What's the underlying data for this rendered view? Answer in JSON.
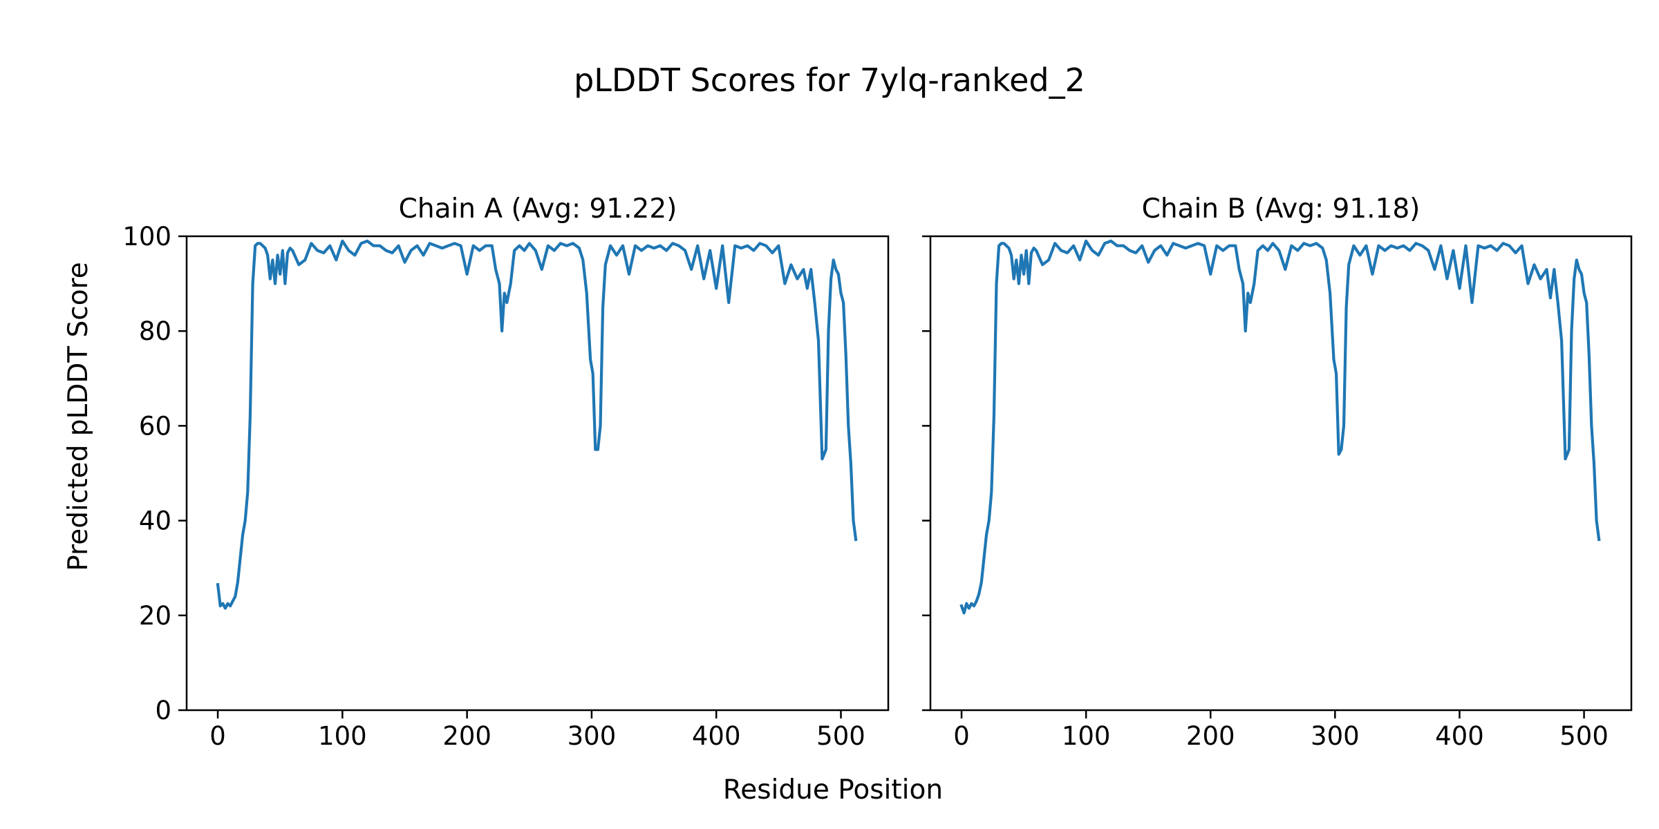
{
  "figure": {
    "title": "pLDDT Scores for 7ylq-ranked_2",
    "xlabel": "Residue Position",
    "ylabel": "Predicted pLDDT Score"
  },
  "chart_data": [
    {
      "type": "line",
      "title": "Chain A (Avg: 91.22)",
      "xlabel": "Residue Position",
      "ylabel": "Predicted pLDDT Score",
      "xlim": [
        -25,
        538
      ],
      "ylim": [
        0,
        100
      ],
      "xticks": [
        "0",
        "100",
        "200",
        "300",
        "400",
        "500"
      ],
      "yticks": [
        "0",
        "20",
        "40",
        "60",
        "80",
        "100"
      ],
      "grid": false,
      "color": "#1f77b4",
      "x": [
        0,
        2,
        4,
        6,
        8,
        10,
        12,
        14,
        16,
        18,
        20,
        22,
        24,
        26,
        28,
        30,
        32,
        34,
        36,
        38,
        40,
        42,
        44,
        46,
        48,
        50,
        52,
        54,
        56,
        58,
        60,
        65,
        70,
        75,
        80,
        85,
        90,
        95,
        100,
        105,
        110,
        115,
        120,
        125,
        130,
        135,
        140,
        145,
        150,
        155,
        160,
        165,
        170,
        175,
        180,
        185,
        190,
        195,
        200,
        205,
        210,
        215,
        220,
        223,
        226,
        228,
        230,
        232,
        235,
        238,
        242,
        246,
        250,
        255,
        260,
        265,
        270,
        275,
        280,
        285,
        290,
        293,
        296,
        299,
        301,
        303,
        305,
        307,
        309,
        311,
        315,
        320,
        325,
        330,
        335,
        340,
        345,
        350,
        355,
        360,
        365,
        370,
        375,
        380,
        385,
        390,
        395,
        400,
        405,
        410,
        415,
        420,
        425,
        430,
        435,
        440,
        445,
        450,
        455,
        460,
        465,
        470,
        473,
        476,
        479,
        482,
        485,
        488,
        490,
        492,
        494,
        496,
        498,
        500,
        502,
        504,
        506,
        508,
        510,
        512
      ],
      "series": [
        {
          "values": [
            26.5,
            22,
            22.5,
            21.5,
            22.5,
            22,
            23,
            24,
            27,
            32,
            37,
            40,
            46,
            62,
            90,
            98,
            98.5,
            98.5,
            98,
            97.5,
            96,
            91,
            95,
            90,
            96,
            92,
            97,
            90,
            96.5,
            97.5,
            97,
            94,
            95,
            98.5,
            97,
            96.5,
            98,
            95,
            99,
            97,
            96,
            98.5,
            99,
            98,
            98,
            97,
            96.5,
            98,
            94.5,
            97,
            98,
            96,
            98.5,
            98,
            97.5,
            98,
            98.5,
            98,
            92,
            98,
            97,
            98,
            98,
            93,
            90,
            80,
            88,
            86,
            90,
            97,
            98,
            97,
            98.5,
            97,
            93,
            98,
            97,
            98.5,
            98,
            98.5,
            97.5,
            95,
            88,
            74,
            71,
            55,
            55,
            60,
            85,
            94,
            98,
            96,
            98,
            92,
            98,
            97,
            98,
            97.5,
            98,
            97,
            98.5,
            98,
            97,
            93,
            98,
            91,
            97,
            89,
            98,
            86,
            98,
            97.5,
            98,
            97,
            98.5,
            98,
            96.5,
            98,
            90,
            94,
            91,
            93,
            89,
            93,
            86,
            78,
            53,
            55,
            80,
            91,
            95,
            93,
            92,
            88,
            86,
            75,
            60,
            52,
            40,
            36
          ]
        }
      ]
    },
    {
      "type": "line",
      "title": "Chain B (Avg: 91.18)",
      "xlabel": "Residue Position",
      "ylabel": "",
      "xlim": [
        -25,
        538
      ],
      "ylim": [
        0,
        100
      ],
      "xticks": [
        "0",
        "100",
        "200",
        "300",
        "400",
        "500"
      ],
      "yticks": [],
      "grid": false,
      "color": "#1f77b4",
      "x": [
        0,
        2,
        4,
        6,
        8,
        10,
        12,
        14,
        16,
        18,
        20,
        22,
        24,
        26,
        28,
        30,
        32,
        34,
        36,
        38,
        40,
        42,
        44,
        46,
        48,
        50,
        52,
        54,
        56,
        58,
        60,
        65,
        70,
        75,
        80,
        85,
        90,
        95,
        100,
        105,
        110,
        115,
        120,
        125,
        130,
        135,
        140,
        145,
        150,
        155,
        160,
        165,
        170,
        175,
        180,
        185,
        190,
        195,
        200,
        205,
        210,
        215,
        220,
        223,
        226,
        228,
        230,
        232,
        235,
        238,
        242,
        246,
        250,
        255,
        260,
        265,
        270,
        275,
        280,
        285,
        290,
        293,
        296,
        299,
        301,
        303,
        305,
        307,
        309,
        311,
        315,
        320,
        325,
        330,
        335,
        340,
        345,
        350,
        355,
        360,
        365,
        370,
        375,
        380,
        385,
        390,
        395,
        400,
        405,
        410,
        415,
        420,
        425,
        430,
        435,
        440,
        445,
        450,
        455,
        460,
        465,
        470,
        473,
        476,
        479,
        482,
        485,
        488,
        490,
        492,
        494,
        496,
        498,
        500,
        502,
        504,
        506,
        508,
        510,
        512
      ],
      "series": [
        {
          "values": [
            22,
            20.5,
            22.5,
            21.5,
            22.5,
            22,
            23,
            24.5,
            27,
            32,
            37,
            40,
            46,
            62,
            90,
            98,
            98.5,
            98.5,
            98,
            97.5,
            96,
            91,
            95,
            90,
            96,
            92,
            97,
            90,
            96.5,
            97.5,
            97,
            94,
            95,
            98.5,
            97,
            96.5,
            98,
            95,
            99,
            97,
            96,
            98.5,
            99,
            98,
            98,
            97,
            96.5,
            98,
            94.5,
            97,
            98,
            96,
            98.5,
            98,
            97.5,
            98,
            98.5,
            98,
            92,
            98,
            97,
            98,
            98,
            93,
            90,
            80,
            88,
            86,
            90,
            97,
            98,
            97,
            98.5,
            97,
            93,
            98,
            97,
            98.5,
            98,
            98.5,
            97.5,
            95,
            88,
            74,
            71,
            54,
            55,
            60,
            85,
            94,
            98,
            96,
            98,
            92,
            98,
            97,
            98,
            97.5,
            98,
            97,
            98.5,
            98,
            97,
            93,
            98,
            91,
            97,
            89,
            98,
            86,
            98,
            97.5,
            98,
            97,
            98.5,
            98,
            96.5,
            98,
            90,
            94,
            91,
            93,
            87,
            93,
            86,
            78,
            53,
            55,
            80,
            91,
            95,
            93,
            92,
            88,
            86,
            75,
            60,
            52,
            40,
            36
          ]
        }
      ]
    }
  ]
}
